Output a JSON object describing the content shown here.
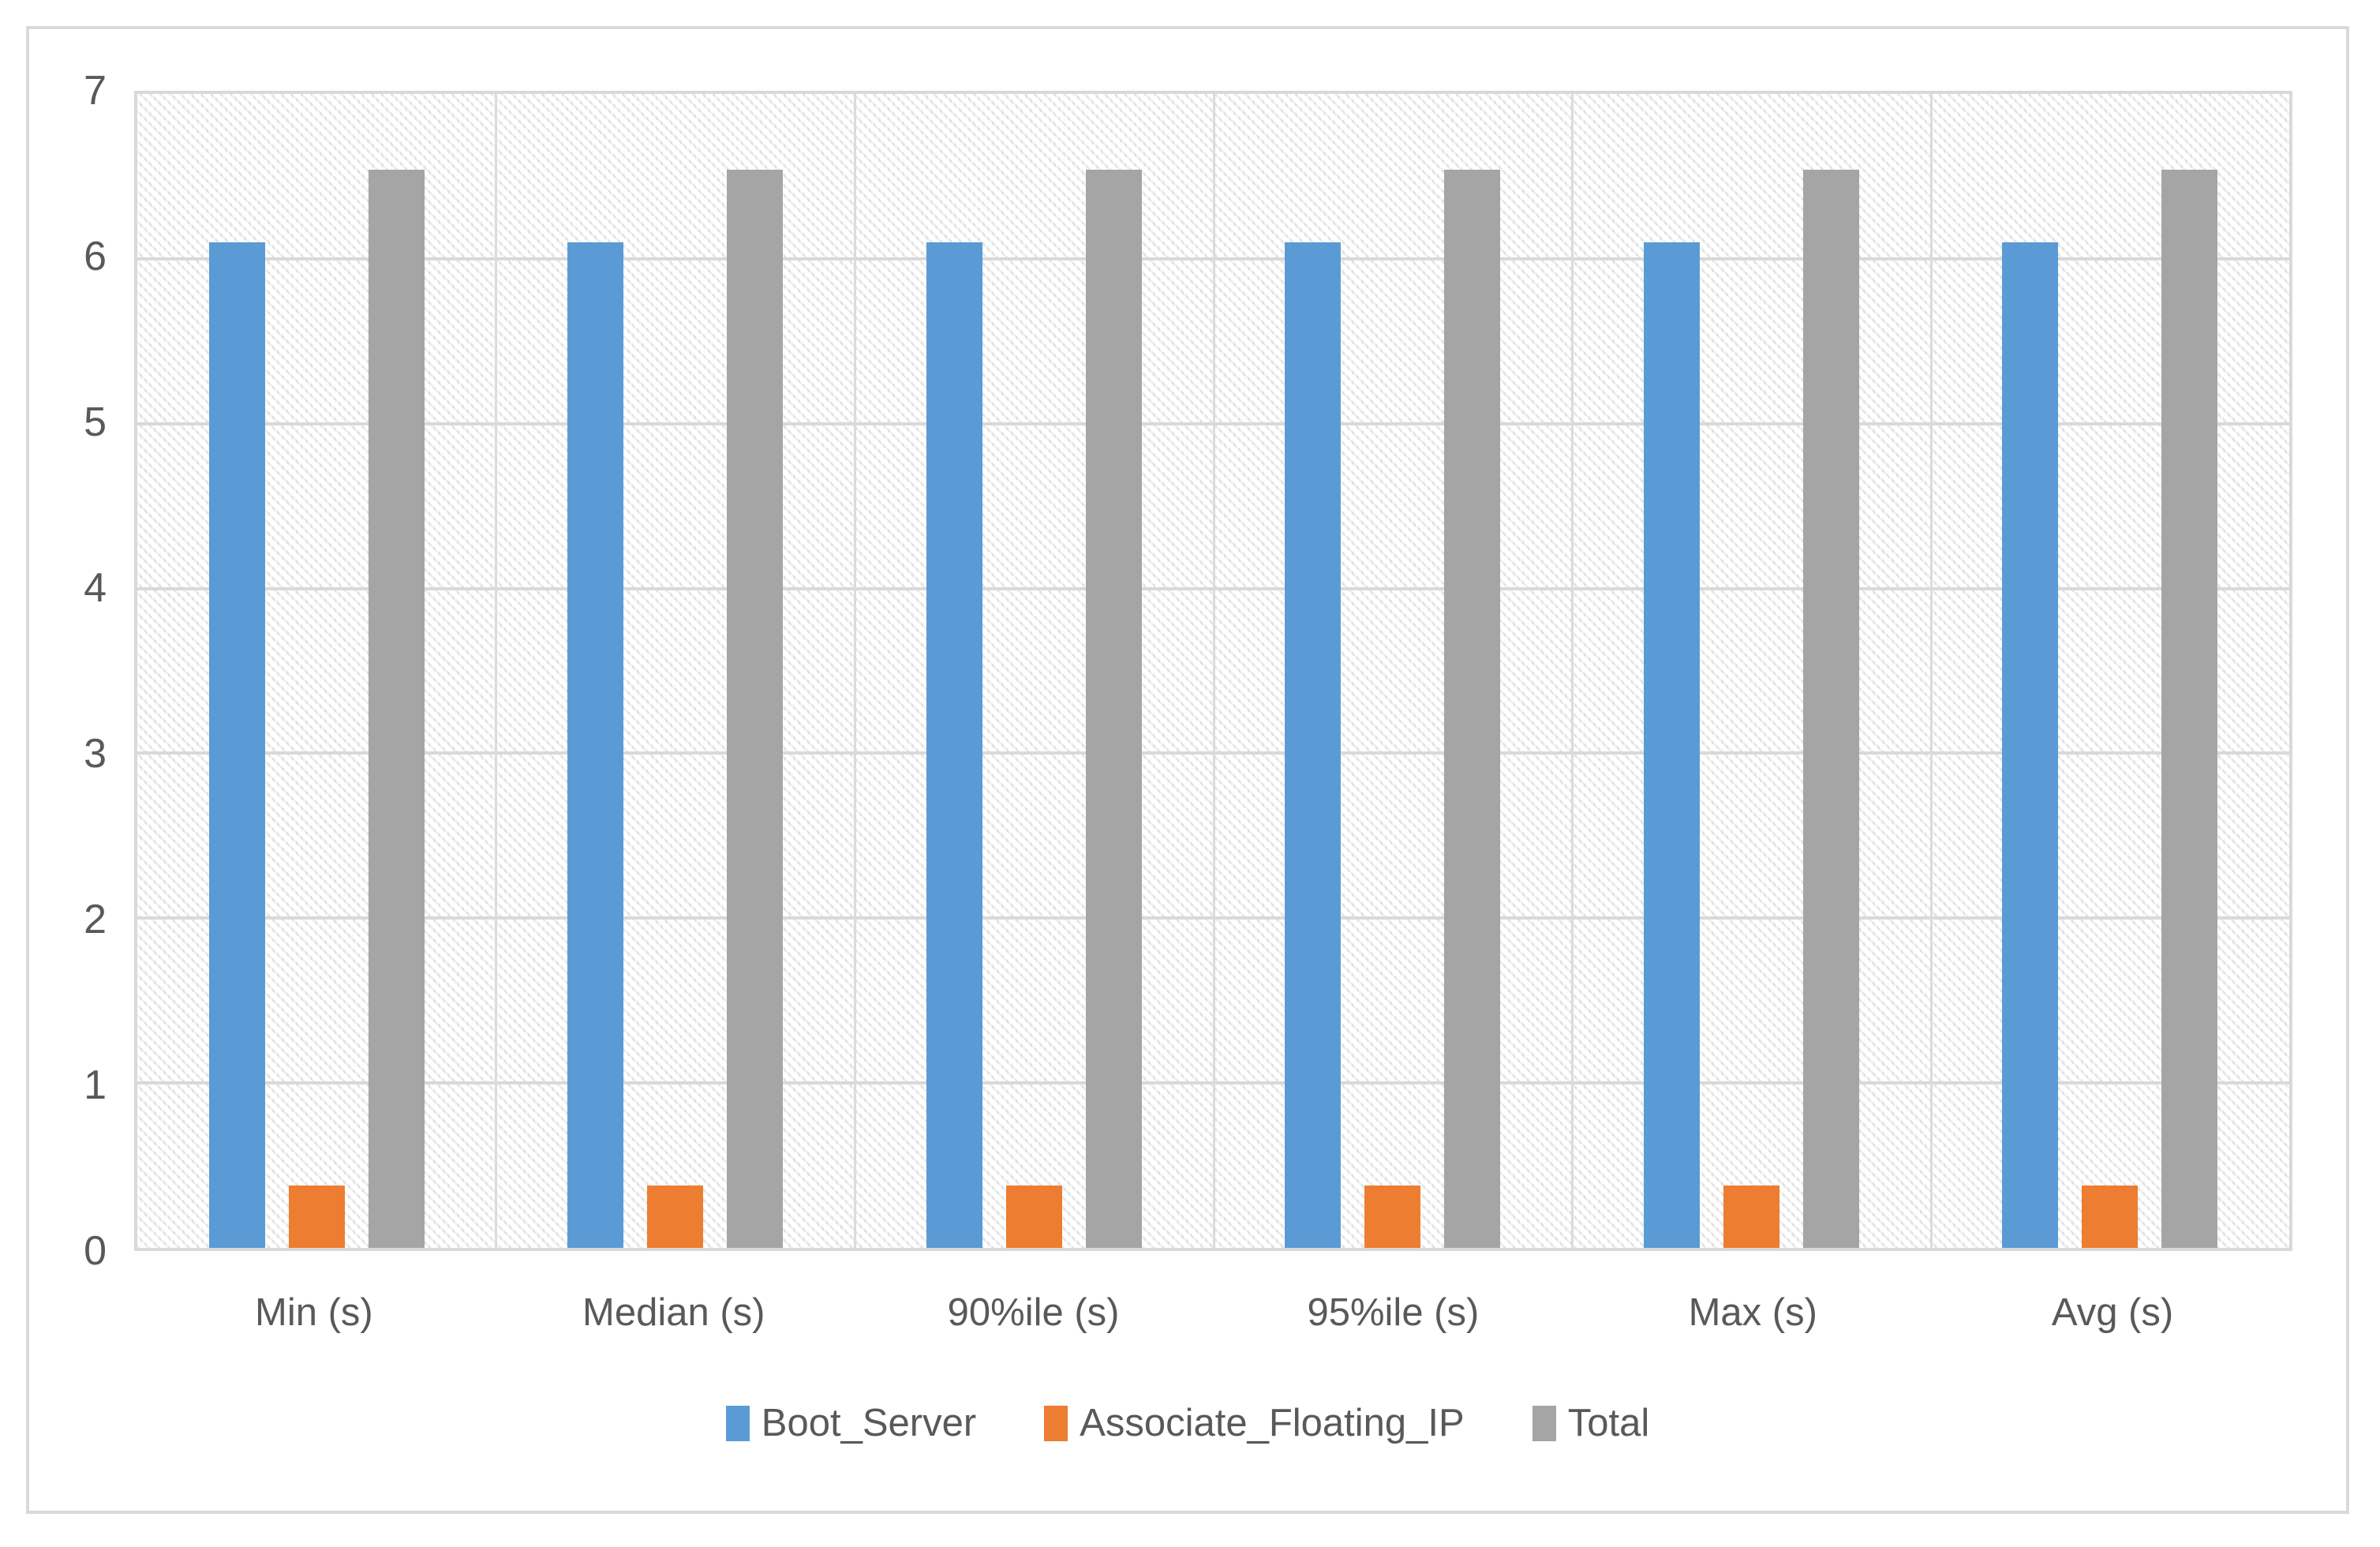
{
  "chart_data": {
    "type": "bar",
    "title": "",
    "categories": [
      "Min (s)",
      "Median (s)",
      "90%ile (s)",
      "95%ile (s)",
      "Max (s)",
      "Avg (s)"
    ],
    "series": [
      {
        "name": "Boot_Server",
        "color": "#5B9BD5",
        "values": [
          6.1,
          6.1,
          6.1,
          6.1,
          6.1,
          6.1
        ]
      },
      {
        "name": "Associate_Floating_IP",
        "color": "#ED7D31",
        "values": [
          0.38,
          0.38,
          0.38,
          0.38,
          0.38,
          0.38
        ]
      },
      {
        "name": "Total",
        "color": "#A5A5A5",
        "values": [
          6.54,
          6.54,
          6.54,
          6.54,
          6.54,
          6.54
        ]
      }
    ],
    "xlabel": "",
    "ylabel": "",
    "ylim": [
      0,
      7
    ],
    "yticks": [
      "0",
      "1",
      "2",
      "3",
      "4",
      "5",
      "6",
      "7"
    ],
    "grid": true,
    "vertical_category_separators": true,
    "legend_position": "bottom",
    "plot_background": "light-diagonal-hatch"
  },
  "style": {
    "gridline_color": "#D9D9D9",
    "frame_border_color": "#D9D9D9",
    "axis_text_color": "#595959",
    "hatch_color": "#E2E2E2",
    "background_color": "#FFFFFF"
  }
}
